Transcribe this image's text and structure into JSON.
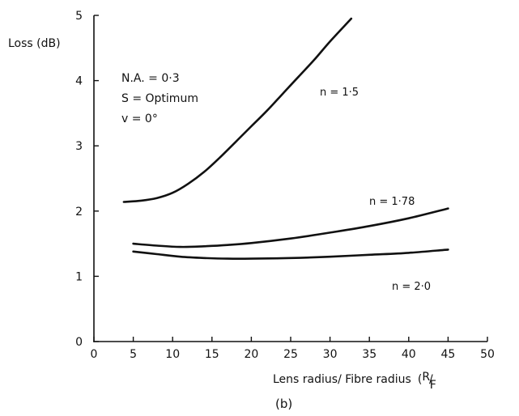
{
  "chart_data": {
    "type": "line",
    "ylabel": "Loss (dB)",
    "xlabel": "Lens radius/ Fibre radius",
    "xlabel_ratio_num": "R",
    "xlabel_ratio_den": "F",
    "panel_label": "(b)",
    "xlim": [
      0,
      50
    ],
    "ylim": [
      0,
      5
    ],
    "x_ticks": [
      0,
      5,
      10,
      15,
      20,
      25,
      30,
      35,
      40,
      45,
      50
    ],
    "y_ticks": [
      0,
      1,
      2,
      3,
      4,
      5
    ],
    "grid": false,
    "annotations": [
      "N.A. = 0·3",
      "S = Optimum",
      "v  =  0°"
    ],
    "series": [
      {
        "name": "n = 1·5",
        "x": [
          3.8,
          6,
          8,
          10,
          12,
          14,
          16,
          18,
          20,
          22,
          24,
          26,
          28,
          30,
          32.7
        ],
        "y": [
          2.14,
          2.16,
          2.2,
          2.28,
          2.42,
          2.6,
          2.82,
          3.06,
          3.3,
          3.54,
          3.8,
          4.06,
          4.32,
          4.6,
          4.95
        ]
      },
      {
        "name": "n = 1·78",
        "x": [
          5,
          8,
          11,
          14,
          17,
          20,
          25,
          30,
          35,
          40,
          45
        ],
        "y": [
          1.5,
          1.47,
          1.45,
          1.46,
          1.48,
          1.51,
          1.58,
          1.67,
          1.77,
          1.89,
          2.04
        ]
      },
      {
        "name": "n = 2·0",
        "x": [
          5,
          8,
          11,
          14,
          17,
          20,
          25,
          30,
          35,
          40,
          45
        ],
        "y": [
          1.38,
          1.34,
          1.3,
          1.28,
          1.27,
          1.27,
          1.28,
          1.3,
          1.33,
          1.36,
          1.41
        ]
      }
    ]
  }
}
